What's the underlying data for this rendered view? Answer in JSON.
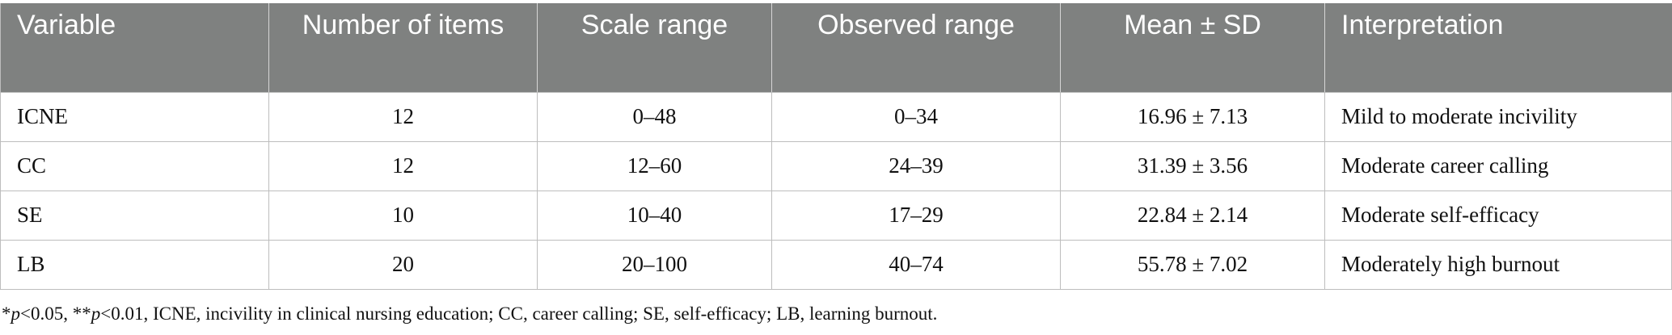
{
  "table": {
    "headers": [
      {
        "label": "Variable",
        "align": "left"
      },
      {
        "label": "Number of items",
        "align": "center"
      },
      {
        "label": "Scale range",
        "align": "center"
      },
      {
        "label": "Observed range",
        "align": "center"
      },
      {
        "label": "Mean ± SD",
        "align": "center"
      },
      {
        "label": "Interpretation",
        "align": "left"
      }
    ],
    "rows": [
      [
        "ICNE",
        "12",
        "0–48",
        "0–34",
        "16.96 ± 7.13",
        "Mild to moderate incivility"
      ],
      [
        "CC",
        "12",
        "12–60",
        "24–39",
        "31.39 ± 3.56",
        "Moderate career calling"
      ],
      [
        "SE",
        "10",
        "10–40",
        "17–29",
        "22.84 ± 2.14",
        "Moderate self-efficacy"
      ],
      [
        "LB",
        "20",
        "20–100",
        "40–74",
        "55.78 ± 7.02",
        "Moderately high burnout"
      ]
    ]
  },
  "footnote": {
    "sig1_prefix": "*",
    "sig1_var": "p",
    "sig1_rest": "<0.05, **",
    "sig2_var": "p",
    "sig2_rest": "<0.01, ICNE, incivility in clinical nursing education; CC, career calling; SE, self-efficacy; LB, learning burnout."
  },
  "colors": {
    "header_bg": "#7f8180",
    "header_text": "#ffffff",
    "border": "#bdbdbd"
  }
}
